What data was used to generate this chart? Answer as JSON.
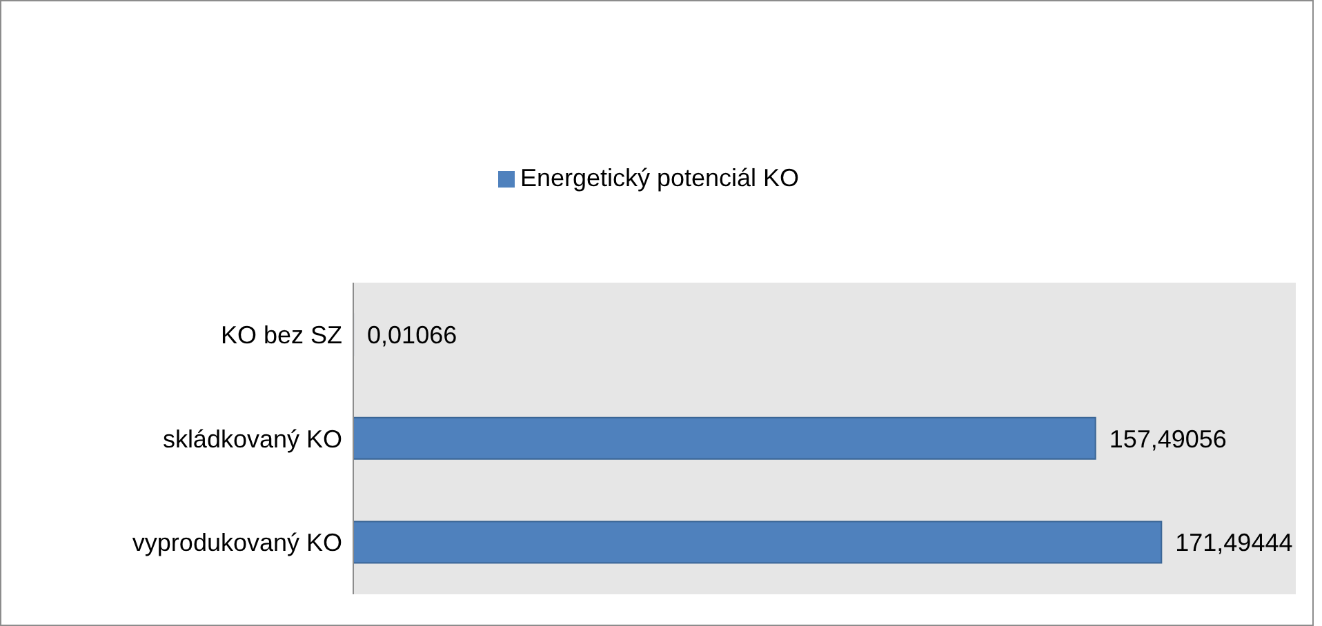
{
  "chart_data": {
    "type": "bar",
    "orientation": "horizontal",
    "categories": [
      "KO bez SZ",
      "skládkovaný KO",
      "vyprodukovaný KO"
    ],
    "series": [
      {
        "name": "Energetický potenciál KO",
        "color": "#4f81bd",
        "values": [
          0.01066,
          157.49056,
          171.49444
        ],
        "value_labels": [
          "0,01066",
          "157,49056",
          "171,49444"
        ]
      }
    ],
    "xlim": [
      0,
      200
    ],
    "tick_labels": "y",
    "legend": "top",
    "grid": false
  }
}
